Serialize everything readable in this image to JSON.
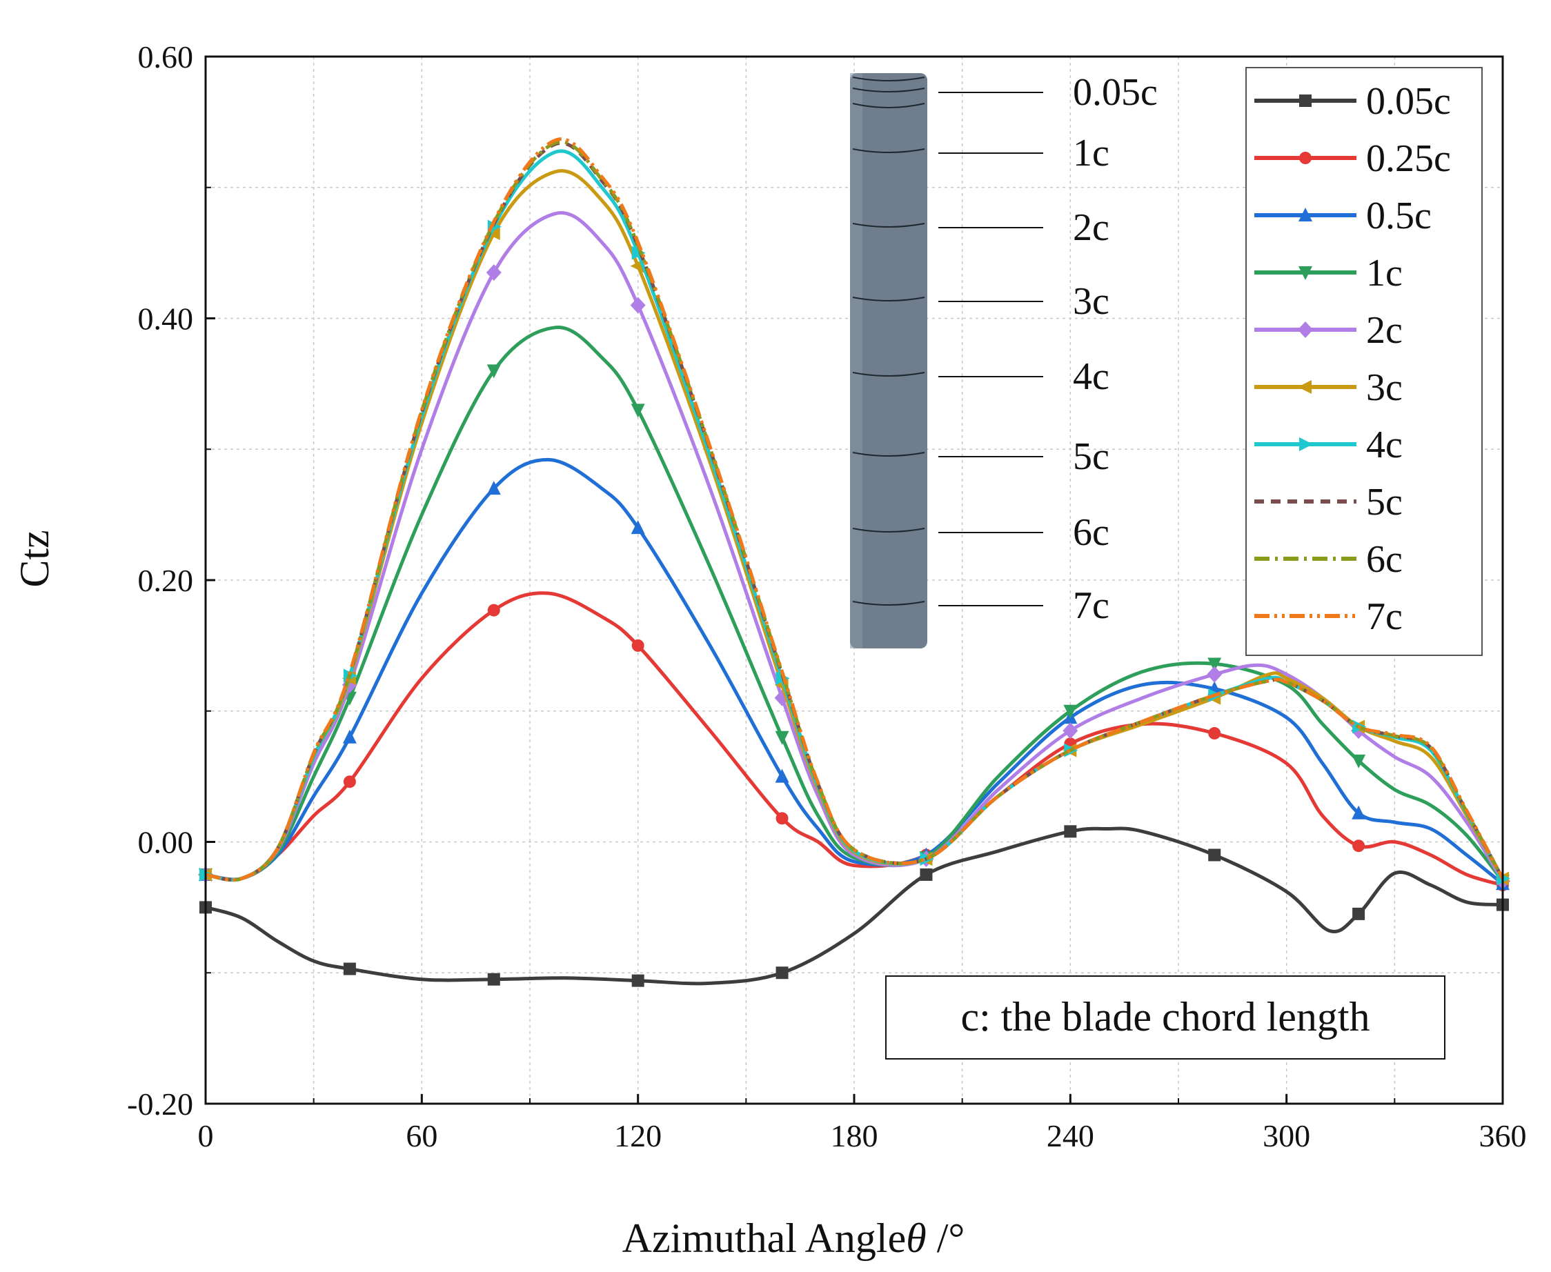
{
  "chart_data": {
    "type": "line",
    "title": "",
    "xlabel": "Azimuthal Angle",
    "xlabel_symbol": "θ",
    "xlabel_unit": " /°",
    "ylabel": "Ctz",
    "xlim": [
      0,
      360
    ],
    "ylim": [
      -0.2,
      0.6
    ],
    "xticks": [
      0,
      60,
      120,
      180,
      240,
      300,
      360
    ],
    "xtick_labels": [
      "0",
      "60",
      "120",
      "180",
      "240",
      "300",
      "360"
    ],
    "yticks": [
      -0.2,
      0.0,
      0.2,
      0.4,
      0.6
    ],
    "ytick_labels": [
      "-0.20",
      "0.00",
      "0.20",
      "0.40",
      "0.60"
    ],
    "grid": true,
    "legend_position": "top-right",
    "annotation": "c: the blade chord length",
    "blade_inset_labels": [
      "0.05c",
      "1c",
      "2c",
      "3c",
      "4c",
      "5c",
      "6c",
      "7c"
    ],
    "series": [
      {
        "name": "0.05c",
        "color": "#3d3d3d",
        "marker": "square",
        "dash": "solid",
        "x": [
          0,
          10,
          20,
          30,
          40,
          60,
          80,
          100,
          120,
          140,
          160,
          180,
          200,
          220,
          240,
          250,
          260,
          280,
          300,
          312,
          320,
          330,
          340,
          350,
          360
        ],
        "y": [
          -0.05,
          -0.058,
          -0.076,
          -0.091,
          -0.097,
          -0.105,
          -0.105,
          -0.104,
          -0.106,
          -0.108,
          -0.1,
          -0.07,
          -0.025,
          -0.007,
          0.008,
          0.01,
          0.008,
          -0.01,
          -0.038,
          -0.068,
          -0.055,
          -0.024,
          -0.033,
          -0.046,
          -0.048
        ]
      },
      {
        "name": "0.25c",
        "color": "#e53935",
        "marker": "circle",
        "dash": "solid",
        "x": [
          0,
          10,
          20,
          30,
          40,
          60,
          80,
          95,
          110,
          120,
          140,
          160,
          170,
          180,
          200,
          220,
          240,
          260,
          280,
          300,
          310,
          320,
          330,
          340,
          350,
          360
        ],
        "y": [
          -0.025,
          -0.028,
          -0.01,
          0.02,
          0.046,
          0.125,
          0.177,
          0.19,
          0.172,
          0.15,
          0.085,
          0.018,
          0.0,
          -0.018,
          -0.01,
          0.035,
          0.075,
          0.09,
          0.083,
          0.06,
          0.02,
          -0.003,
          0.0,
          -0.01,
          -0.025,
          -0.033
        ]
      },
      {
        "name": "0.5c",
        "color": "#1f6fd6",
        "marker": "triangle-up",
        "dash": "solid",
        "x": [
          0,
          10,
          20,
          30,
          40,
          60,
          80,
          95,
          110,
          120,
          140,
          160,
          170,
          180,
          200,
          220,
          240,
          260,
          280,
          300,
          310,
          320,
          330,
          340,
          350,
          360
        ],
        "y": [
          -0.025,
          -0.028,
          -0.01,
          0.035,
          0.08,
          0.19,
          0.27,
          0.292,
          0.27,
          0.24,
          0.15,
          0.05,
          0.01,
          -0.015,
          -0.01,
          0.045,
          0.095,
          0.12,
          0.117,
          0.095,
          0.06,
          0.022,
          0.015,
          0.01,
          -0.01,
          -0.032
        ]
      },
      {
        "name": "1c",
        "color": "#2e9e5b",
        "marker": "triangle-down",
        "dash": "solid",
        "x": [
          0,
          10,
          20,
          30,
          40,
          60,
          80,
          97,
          110,
          120,
          140,
          160,
          170,
          180,
          200,
          220,
          240,
          260,
          280,
          300,
          310,
          320,
          330,
          340,
          350,
          360
        ],
        "y": [
          -0.025,
          -0.028,
          -0.008,
          0.05,
          0.11,
          0.25,
          0.36,
          0.393,
          0.37,
          0.33,
          0.21,
          0.08,
          0.02,
          -0.012,
          -0.012,
          0.05,
          0.1,
          0.13,
          0.136,
          0.12,
          0.09,
          0.062,
          0.04,
          0.028,
          0.005,
          -0.03
        ]
      },
      {
        "name": "2c",
        "color": "#b07ee6",
        "marker": "diamond",
        "dash": "solid",
        "x": [
          0,
          10,
          20,
          30,
          40,
          60,
          80,
          97,
          110,
          120,
          140,
          160,
          170,
          180,
          200,
          220,
          240,
          260,
          280,
          292,
          300,
          310,
          320,
          330,
          340,
          350,
          360
        ],
        "y": [
          -0.025,
          -0.028,
          -0.006,
          0.06,
          0.12,
          0.3,
          0.435,
          0.48,
          0.458,
          0.41,
          0.27,
          0.11,
          0.035,
          -0.01,
          -0.013,
          0.04,
          0.085,
          0.11,
          0.128,
          0.135,
          0.128,
          0.11,
          0.085,
          0.065,
          0.05,
          0.015,
          -0.03
        ]
      },
      {
        "name": "3c",
        "color": "#c99a12",
        "marker": "triangle-left",
        "dash": "solid",
        "x": [
          0,
          10,
          20,
          30,
          40,
          60,
          80,
          97,
          110,
          120,
          140,
          160,
          170,
          180,
          200,
          220,
          240,
          260,
          280,
          295,
          300,
          310,
          320,
          330,
          340,
          350,
          360
        ],
        "y": [
          -0.025,
          -0.028,
          -0.005,
          0.065,
          0.125,
          0.32,
          0.465,
          0.512,
          0.49,
          0.44,
          0.29,
          0.12,
          0.04,
          -0.008,
          -0.013,
          0.035,
          0.07,
          0.09,
          0.11,
          0.128,
          0.125,
          0.11,
          0.088,
          0.077,
          0.065,
          0.02,
          -0.028
        ]
      },
      {
        "name": "4c",
        "color": "#1ec8cc",
        "marker": "triangle-right",
        "dash": "solid",
        "x": [
          0,
          10,
          20,
          30,
          40,
          60,
          80,
          97,
          110,
          120,
          140,
          160,
          170,
          180,
          200,
          220,
          240,
          260,
          280,
          295,
          300,
          310,
          320,
          330,
          340,
          350,
          360
        ],
        "y": [
          -0.025,
          -0.028,
          -0.005,
          0.065,
          0.127,
          0.325,
          0.47,
          0.527,
          0.5,
          0.45,
          0.295,
          0.125,
          0.042,
          -0.007,
          -0.013,
          0.035,
          0.07,
          0.092,
          0.112,
          0.125,
          0.122,
          0.108,
          0.088,
          0.08,
          0.07,
          0.022,
          -0.028
        ]
      },
      {
        "name": "5c",
        "color": "#7a4e4e",
        "marker": "none",
        "dash": "dash",
        "x": [
          0,
          10,
          20,
          30,
          40,
          60,
          80,
          97,
          110,
          120,
          140,
          160,
          170,
          180,
          200,
          220,
          240,
          260,
          280,
          295,
          300,
          310,
          320,
          330,
          340,
          350,
          360
        ],
        "y": [
          -0.025,
          -0.028,
          -0.005,
          0.067,
          0.128,
          0.328,
          0.472,
          0.533,
          0.505,
          0.455,
          0.3,
          0.128,
          0.044,
          -0.006,
          -0.013,
          0.035,
          0.07,
          0.092,
          0.112,
          0.123,
          0.122,
          0.108,
          0.088,
          0.081,
          0.072,
          0.023,
          -0.028
        ]
      },
      {
        "name": "6c",
        "color": "#8a9a1a",
        "marker": "none",
        "dash": "dashdot",
        "x": [
          0,
          10,
          20,
          30,
          40,
          60,
          80,
          97,
          110,
          120,
          140,
          160,
          170,
          180,
          200,
          220,
          240,
          260,
          280,
          295,
          300,
          310,
          320,
          330,
          340,
          350,
          360
        ],
        "y": [
          -0.025,
          -0.028,
          -0.005,
          0.067,
          0.128,
          0.329,
          0.473,
          0.534,
          0.506,
          0.456,
          0.301,
          0.129,
          0.044,
          -0.006,
          -0.013,
          0.035,
          0.07,
          0.092,
          0.112,
          0.123,
          0.122,
          0.108,
          0.088,
          0.081,
          0.072,
          0.023,
          -0.028
        ]
      },
      {
        "name": "7c",
        "color": "#f07a1a",
        "marker": "none",
        "dash": "dashdotdot",
        "x": [
          0,
          10,
          20,
          30,
          40,
          60,
          80,
          97,
          110,
          120,
          140,
          160,
          170,
          180,
          200,
          220,
          240,
          260,
          280,
          295,
          300,
          310,
          320,
          330,
          340,
          350,
          360
        ],
        "y": [
          -0.025,
          -0.028,
          -0.005,
          0.068,
          0.129,
          0.33,
          0.474,
          0.536,
          0.508,
          0.458,
          0.302,
          0.13,
          0.045,
          -0.006,
          -0.013,
          0.035,
          0.07,
          0.092,
          0.112,
          0.123,
          0.122,
          0.108,
          0.088,
          0.082,
          0.073,
          0.024,
          -0.028
        ]
      }
    ]
  }
}
